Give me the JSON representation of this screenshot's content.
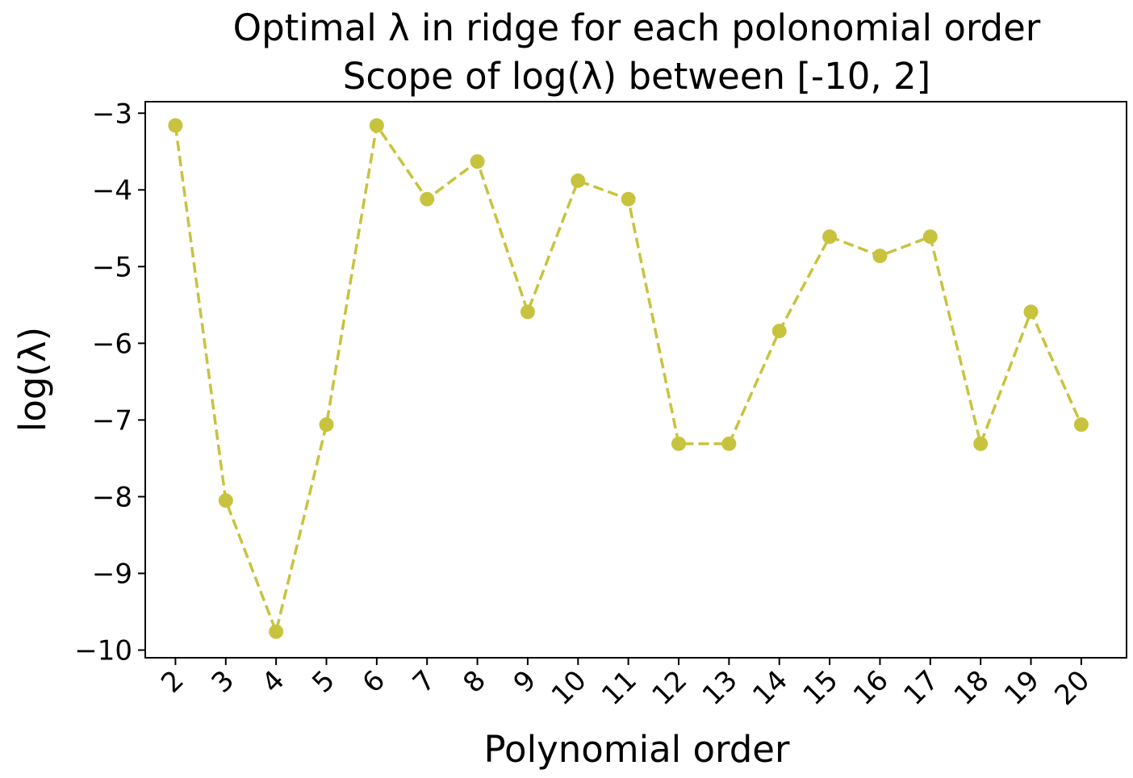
{
  "chart_data": {
    "type": "line",
    "title_line1": "Optimal λ in ridge for each polonomial order",
    "title_line2": "Scope of log(λ) between [-10, 2]",
    "xlabel": "Polynomial order",
    "ylabel": "log(λ)",
    "x": [
      2,
      3,
      4,
      5,
      6,
      7,
      8,
      9,
      10,
      11,
      12,
      13,
      14,
      15,
      16,
      17,
      18,
      19,
      20
    ],
    "y": [
      -3.16,
      -8.05,
      -9.76,
      -7.06,
      -3.16,
      -4.12,
      -3.63,
      -5.59,
      -3.88,
      -4.12,
      -7.31,
      -7.31,
      -5.84,
      -4.61,
      -4.86,
      -4.61,
      -7.31,
      -5.59,
      -7.06
    ],
    "yticks": [
      "−3",
      "−4",
      "−5",
      "−6",
      "−7",
      "−8",
      "−9",
      "−10"
    ],
    "ytick_values": [
      -3,
      -4,
      -5,
      -6,
      -7,
      -8,
      -9,
      -10
    ],
    "xlim": [
      1.4,
      20.9
    ],
    "ylim": [
      -10.1,
      -2.85
    ],
    "line_style": "dashed",
    "marker": "circle",
    "color": "#c8c33e",
    "grid": false,
    "legend": false
  }
}
